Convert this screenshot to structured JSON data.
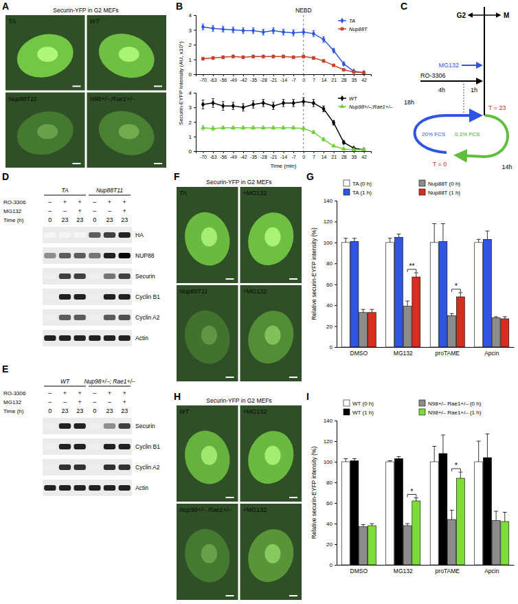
{
  "panels": [
    "A",
    "B",
    "C",
    "D",
    "F",
    "G",
    "E",
    "H",
    "I"
  ],
  "micrographs": [
    {
      "title": "Securin-YFP in G2 MEFs",
      "images": [
        {
          "label": "TA",
          "signal": 0.85
        },
        {
          "label": "WT",
          "signal": 0.8
        },
        {
          "label": "Nup88T11",
          "signal": 0.3
        },
        {
          "label": "N98+/–;Rae1+/–",
          "signal": 0.35
        }
      ]
    },
    {
      "title": "Securin-YFP in G2 MEFs",
      "images": [
        {
          "label": "TA",
          "signal": 0.75
        },
        {
          "label": "+MG132",
          "signal": 0.8
        },
        {
          "label": "Nup88T11",
          "signal": 0.25
        },
        {
          "label": "+MG132",
          "signal": 0.45
        }
      ]
    },
    {
      "title": "Securin-YFP in G2 MEFs",
      "images": [
        {
          "label": "WT",
          "signal": 0.7
        },
        {
          "label": "+MG132",
          "signal": 0.75
        },
        {
          "label": "Nup98+/– Rae1+/–",
          "signal": 0.3
        },
        {
          "label": "+MG132",
          "signal": 0.5
        }
      ]
    }
  ],
  "diagram": {
    "g2": "G2",
    "m": "M",
    "mg132": "MG132",
    "ro3306": "RO-3306",
    "t18": "18h",
    "t4": "4h",
    "t1": "1h",
    "fcs20": "20% FCS",
    "fcs01": "0.1% FCS",
    "t14": "14h",
    "t_end": "T = 23",
    "t_start": "T = 0"
  },
  "blots": [
    {
      "groups": [
        "TA",
        "Nup88T11"
      ],
      "conditions": [
        {
          "label": "RO-3306",
          "values": [
            "–",
            "+",
            "+",
            "–",
            "+",
            "+"
          ]
        },
        {
          "label": "MG132",
          "values": [
            "–",
            "–",
            "+",
            "–",
            "–",
            "+"
          ]
        },
        {
          "label": "Time (h)",
          "values": [
            "0",
            "23",
            "23",
            "0",
            "23",
            "23"
          ]
        }
      ],
      "rows": [
        {
          "label": "HA",
          "bands": [
            0,
            0,
            0,
            0.7,
            0.8,
            0.9
          ]
        },
        {
          "label": "NUP88",
          "bands": [
            0.5,
            0.7,
            0.7,
            0.6,
            0.9,
            1
          ]
        },
        {
          "label": "Securin",
          "bands": [
            0.05,
            0.8,
            0.8,
            0.05,
            0.6,
            0.8
          ]
        },
        {
          "label": "Cyclin B1",
          "bands": [
            0.05,
            0.9,
            0.9,
            0.05,
            0.9,
            0.9
          ]
        },
        {
          "label": "Cyclin A2",
          "bands": [
            0.05,
            0.7,
            0.7,
            0.05,
            0.7,
            0.75
          ]
        },
        {
          "label": "Actin",
          "bands": [
            0.9,
            0.9,
            0.9,
            0.9,
            0.9,
            0.9
          ]
        }
      ]
    },
    {
      "groups": [
        "WT",
        "Nup98+/–; Rae1+/–"
      ],
      "conditions": [
        {
          "label": "RO-3306",
          "values": [
            "–",
            "+",
            "+",
            "–",
            "+",
            "+"
          ]
        },
        {
          "label": "MG132",
          "values": [
            "–",
            "–",
            "+",
            "–",
            "–",
            "+"
          ]
        },
        {
          "label": "Time (h)",
          "values": [
            "0",
            "23",
            "23",
            "0",
            "23",
            "23"
          ]
        }
      ],
      "rows": [
        {
          "label": "Securin",
          "bands": [
            0.05,
            0.9,
            0.9,
            0.05,
            0.5,
            0.8
          ]
        },
        {
          "label": "Cyclin B1",
          "bands": [
            0.05,
            0.9,
            0.9,
            0.05,
            0.9,
            0.9
          ]
        },
        {
          "label": "Cyclin A2",
          "bands": [
            0.05,
            0.85,
            0.85,
            0.05,
            0.85,
            0.85
          ]
        },
        {
          "label": "Actin",
          "bands": [
            0.9,
            0.9,
            0.9,
            0.9,
            0.9,
            0.9
          ]
        }
      ]
    }
  ],
  "chart_data": [
    {
      "type": "line",
      "x": [
        -70,
        -63,
        -56,
        -49,
        -42,
        -35,
        -28,
        -21,
        -14,
        -7,
        0,
        7,
        14,
        21,
        28,
        35,
        42
      ],
      "xlim": [
        -75,
        47
      ],
      "xticks": [
        -70,
        -63,
        -56,
        -49,
        -42,
        -35,
        -28,
        -21,
        -14,
        -7,
        0,
        7,
        14,
        21,
        28,
        35,
        42
      ],
      "ylim": [
        0,
        4
      ],
      "yticks": [
        0,
        1,
        2,
        3,
        4
      ],
      "y_label": "Securin-EYFP Intensity (AU, x10⁵)",
      "legend": "upper right",
      "annotations": [
        {
          "text": "NEBD",
          "x": 0
        }
      ],
      "series": [
        {
          "name": "TA",
          "color": "#2f55e0",
          "marker": "diamond",
          "values": [
            3.2,
            3.1,
            3.05,
            3.0,
            2.95,
            2.95,
            2.85,
            2.95,
            2.85,
            2.8,
            2.85,
            2.75,
            2.35,
            1.6,
            0.7,
            0.2,
            0.1
          ],
          "errors": [
            0.2,
            0.2,
            0.2,
            0.2,
            0.2,
            0.2,
            0.2,
            0.2,
            0.2,
            0.2,
            0.2,
            0.2,
            0.2,
            0.15,
            0.1,
            0.05,
            0.05
          ]
        },
        {
          "name": "Nup88T",
          "color": "#c8412b",
          "marker": "square",
          "values": [
            1.05,
            1.1,
            1.15,
            1.2,
            1.15,
            1.2,
            1.2,
            1.2,
            1.2,
            1.15,
            1.2,
            1.1,
            0.9,
            0.6,
            0.3,
            0.15,
            0.1
          ],
          "errors": [
            0.1,
            0.1,
            0.1,
            0.1,
            0.1,
            0.1,
            0.1,
            0.1,
            0.1,
            0.1,
            0.1,
            0.1,
            0.1,
            0.08,
            0.05,
            0.05,
            0.05
          ]
        }
      ]
    },
    {
      "type": "line",
      "x": [
        -70,
        -63,
        -56,
        -49,
        -42,
        -35,
        -28,
        -21,
        -14,
        -7,
        0,
        7,
        14,
        21,
        28,
        35,
        42
      ],
      "xlim": [
        -75,
        47
      ],
      "xticks": [
        -70,
        -63,
        -56,
        -49,
        -42,
        -35,
        -28,
        -21,
        -14,
        -7,
        0,
        7,
        14,
        21,
        28,
        35,
        42
      ],
      "ylim": [
        0,
        4
      ],
      "yticks": [
        0,
        1,
        2,
        3,
        4
      ],
      "x_label": "Time (min)",
      "legend": "upper right",
      "annotations": [
        {
          "x": 0
        }
      ],
      "series": [
        {
          "name": "WT",
          "color": "#000000",
          "marker": "diamond",
          "values": [
            3.2,
            3.3,
            3.1,
            3.1,
            3.0,
            3.2,
            3.3,
            3.1,
            3.3,
            3.3,
            3.4,
            3.3,
            2.9,
            1.95,
            0.6,
            0.2,
            0.1
          ],
          "errors": [
            0.3,
            0.3,
            0.3,
            0.25,
            0.25,
            0.25,
            0.25,
            0.25,
            0.25,
            0.25,
            0.25,
            0.25,
            0.2,
            0.15,
            0.1,
            0.05,
            0.05
          ]
        },
        {
          "name": "Nup98+/–;Rae1+/–",
          "color": "#6fd23a",
          "marker": "triangle",
          "values": [
            1.6,
            1.55,
            1.6,
            1.6,
            1.6,
            1.6,
            1.6,
            1.6,
            1.6,
            1.6,
            1.55,
            1.3,
            0.8,
            0.35,
            0.15,
            0.1,
            0.1
          ],
          "errors": [
            0.15,
            0.15,
            0.1,
            0.1,
            0.1,
            0.1,
            0.1,
            0.1,
            0.1,
            0.1,
            0.1,
            0.1,
            0.1,
            0.05,
            0.05,
            0.05,
            0.05
          ]
        }
      ]
    },
    {
      "type": "bar",
      "categories": [
        "DMSO",
        "MG132",
        "proTAME",
        "Apcin"
      ],
      "ylim": [
        0,
        140
      ],
      "yticks": [
        0,
        20,
        40,
        60,
        80,
        100,
        120,
        140
      ],
      "y_label": "Relative securin-EYFP intensity (%)",
      "legend": "top",
      "series": [
        {
          "name": "TA (0 h)",
          "color": "#ffffff",
          "values": [
            100,
            100,
            100,
            100
          ],
          "errors": [
            4,
            4,
            18,
            3
          ]
        },
        {
          "name": "TA (1 h)",
          "color": "#2f55e0",
          "values": [
            101,
            105,
            101,
            103
          ],
          "errors": [
            3,
            3,
            17,
            8
          ]
        },
        {
          "name": "Nup88T (0 h)",
          "color": "#8c8c8c",
          "values": [
            33,
            39,
            30,
            28
          ],
          "errors": [
            3,
            5,
            2,
            1
          ]
        },
        {
          "name": "Nup88T (1 h)",
          "color": "#d62d20",
          "values": [
            33,
            67,
            48,
            27
          ],
          "errors": [
            3,
            4,
            4,
            2
          ]
        }
      ],
      "annotations": [
        {
          "text": "**",
          "category": "MG132",
          "between": [
            "Nup88T (0 h)",
            "Nup88T (1 h)"
          ]
        },
        {
          "text": "*",
          "category": "proTAME",
          "between": [
            "Nup88T (0 h)",
            "Nup88T (1 h)"
          ]
        }
      ]
    },
    {
      "type": "bar",
      "categories": [
        "DMSO",
        "MG132",
        "proTAME",
        "Apcin"
      ],
      "ylim": [
        0,
        140
      ],
      "yticks": [
        0,
        20,
        40,
        60,
        80,
        100,
        120,
        140
      ],
      "y_label": "Relative securin-EYFP intensity (%)",
      "legend": "top",
      "series": [
        {
          "name": "WT (0 h)",
          "color": "#ffffff",
          "values": [
            100,
            100,
            100,
            100
          ],
          "errors": [
            3,
            1,
            15,
            20
          ]
        },
        {
          "name": "WT (1 h)",
          "color": "#000000",
          "values": [
            101,
            103,
            108,
            104
          ],
          "errors": [
            2,
            2,
            18,
            23
          ]
        },
        {
          "name": "N98+/– Rae1+/– (0 h)",
          "color": "#8c8c8c",
          "values": [
            37,
            38,
            44,
            43
          ],
          "errors": [
            2,
            2,
            9,
            9
          ]
        },
        {
          "name": "N98+/– Rae1+/– (1 h)",
          "color": "#7ddc3a",
          "values": [
            38,
            62,
            84,
            42
          ],
          "errors": [
            2,
            3,
            6,
            9
          ]
        }
      ],
      "annotations": [
        {
          "text": "*",
          "category": "MG132",
          "between": [
            "N98+/– Rae1+/– (0 h)",
            "N98+/– Rae1+/– (1 h)"
          ]
        },
        {
          "text": "*",
          "category": "proTAME",
          "between": [
            "N98+/– Rae1+/– (0 h)",
            "N98+/– Rae1+/– (1 h)"
          ]
        }
      ]
    }
  ]
}
